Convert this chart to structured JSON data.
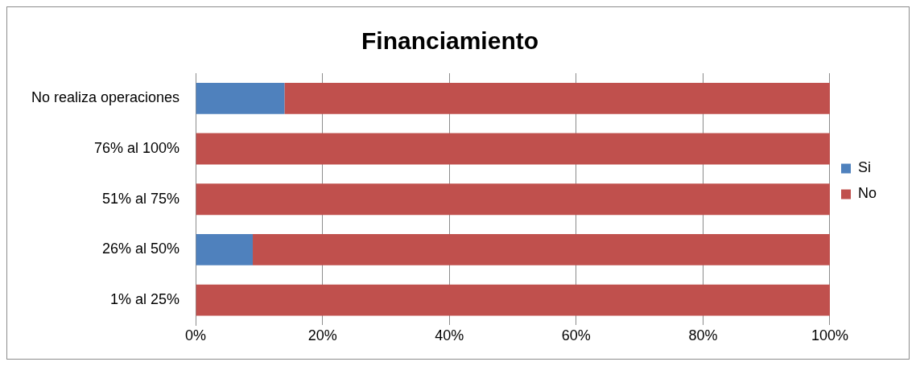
{
  "chart_data": {
    "type": "bar",
    "title": "Financiamiento",
    "orientation": "horizontal",
    "stacked": true,
    "categories": [
      "No realiza operaciones",
      "76% al 100%",
      "51% al 75%",
      "26% al 50%",
      "1% al 25%"
    ],
    "series": [
      {
        "name": "Si",
        "color": "#4f81bd",
        "values": [
          14,
          0,
          0,
          9,
          0
        ]
      },
      {
        "name": "No",
        "color": "#c0504d",
        "values": [
          86,
          100,
          100,
          91,
          100
        ]
      }
    ],
    "xlim": [
      0,
      100
    ],
    "xticks": [
      {
        "value": 0,
        "label": "0%"
      },
      {
        "value": 20,
        "label": "20%"
      },
      {
        "value": 40,
        "label": "40%"
      },
      {
        "value": 60,
        "label": "60%"
      },
      {
        "value": 80,
        "label": "80%"
      },
      {
        "value": 100,
        "label": "100%"
      }
    ],
    "grid": "x",
    "legend": "right"
  }
}
